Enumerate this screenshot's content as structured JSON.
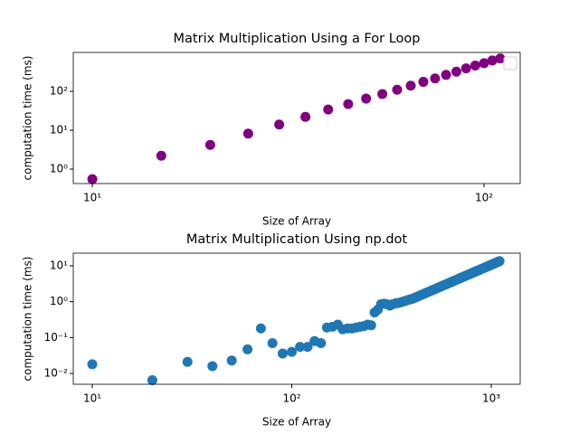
{
  "chart_data": [
    {
      "type": "scatter",
      "title": "Matrix Multiplication Using a For Loop",
      "x_label": "Size of Array",
      "y_label": "computation time (ms)",
      "xscale": "log",
      "yscale": "log",
      "legend": "upper right",
      "xlim": [
        8.94,
        123.7
      ],
      "ylim": [
        0.425,
        1000
      ],
      "xticks": [
        {
          "value": 10,
          "label": "10¹"
        },
        {
          "value": 100,
          "label": "10²"
        }
      ],
      "yticks": [
        {
          "value": 1,
          "label": "10⁰"
        },
        {
          "value": 10,
          "label": "10¹"
        },
        {
          "value": 100,
          "label": "10²"
        }
      ],
      "series": [
        {
          "color": "#800080",
          "x": [
            10,
            15,
            20,
            25,
            30,
            35,
            40,
            45,
            50,
            55,
            60,
            65,
            70,
            75,
            80,
            85,
            90,
            95,
            100,
            105,
            110
          ],
          "values": [
            0.55,
            2.2,
            4.2,
            8.2,
            14,
            22,
            34,
            47,
            65,
            85,
            110,
            140,
            175,
            215,
            265,
            320,
            390,
            460,
            530,
            620,
            700
          ]
        }
      ]
    },
    {
      "type": "scatter",
      "title": "Matrix Multiplication Using np.dot",
      "x_label": "Size of Array",
      "y_label": "computation time (ms)",
      "xscale": "log",
      "yscale": "log",
      "xlim": [
        8.03,
        1396
      ],
      "ylim": [
        0.005,
        22.5
      ],
      "xticks": [
        {
          "value": 10,
          "label": "10¹"
        },
        {
          "value": 100,
          "label": "10²"
        },
        {
          "value": 1000,
          "label": "10³"
        }
      ],
      "yticks": [
        {
          "value": 0.01,
          "label": "10⁻²"
        },
        {
          "value": 0.1,
          "label": "10⁻¹"
        },
        {
          "value": 1,
          "label": "10⁰"
        },
        {
          "value": 10,
          "label": "10¹"
        }
      ],
      "series": [
        {
          "color": "#1f77b4",
          "x": [
            10,
            20,
            30,
            40,
            50,
            60,
            70,
            80,
            90,
            100,
            110,
            120,
            130,
            140,
            150,
            160,
            170,
            180,
            190,
            200,
            210,
            220,
            230,
            240,
            250,
            260,
            270,
            280,
            290,
            300,
            310,
            320,
            330,
            340,
            350,
            360,
            370,
            380,
            390,
            400,
            410,
            420,
            430,
            440,
            450,
            460,
            470,
            480,
            490,
            500,
            510,
            520,
            530,
            540,
            550,
            560,
            570,
            580,
            590,
            600,
            610,
            620,
            630,
            640,
            650,
            660,
            670,
            680,
            690,
            700,
            710,
            720,
            730,
            740,
            750,
            760,
            770,
            780,
            790,
            800,
            810,
            820,
            830,
            840,
            850,
            860,
            870,
            880,
            890,
            900,
            910,
            920,
            930,
            940,
            950,
            960,
            970,
            980,
            990,
            1000,
            1010,
            1020,
            1030,
            1040,
            1050,
            1060,
            1070,
            1080,
            1090,
            1100
          ],
          "values": [
            0.018,
            0.0065,
            0.021,
            0.016,
            0.023,
            0.047,
            0.18,
            0.07,
            0.036,
            0.04,
            0.055,
            0.055,
            0.08,
            0.07,
            0.19,
            0.2,
            0.23,
            0.17,
            0.18,
            0.18,
            0.19,
            0.2,
            0.21,
            0.23,
            0.22,
            0.5,
            0.6,
            0.85,
            0.88,
            0.85,
            0.78,
            0.85,
            0.9,
            0.92,
            0.95,
            1.0,
            1.05,
            1.1,
            1.15,
            1.19,
            1.26,
            1.33,
            1.41,
            1.49,
            1.57,
            1.66,
            1.75,
            1.84,
            1.93,
            2.03,
            2.13,
            2.23,
            2.33,
            2.44,
            2.55,
            2.66,
            2.78,
            2.89,
            3.02,
            3.14,
            3.27,
            3.4,
            3.53,
            3.67,
            3.81,
            3.95,
            4.09,
            4.24,
            4.39,
            4.55,
            4.7,
            4.86,
            5.03,
            5.19,
            5.37,
            5.54,
            5.71,
            5.89,
            6.08,
            6.26,
            6.45,
            6.65,
            6.84,
            7.04,
            7.24,
            7.45,
            7.66,
            7.88,
            8.09,
            8.31,
            8.53,
            8.76,
            8.99,
            9.22,
            9.46,
            9.7,
            9.95,
            10.2,
            10.4,
            10.7,
            11.0,
            11.2,
            11.5,
            11.8,
            12.0,
            12.3,
            12.6,
            12.9,
            13.2,
            13.5
          ]
        }
      ]
    }
  ]
}
